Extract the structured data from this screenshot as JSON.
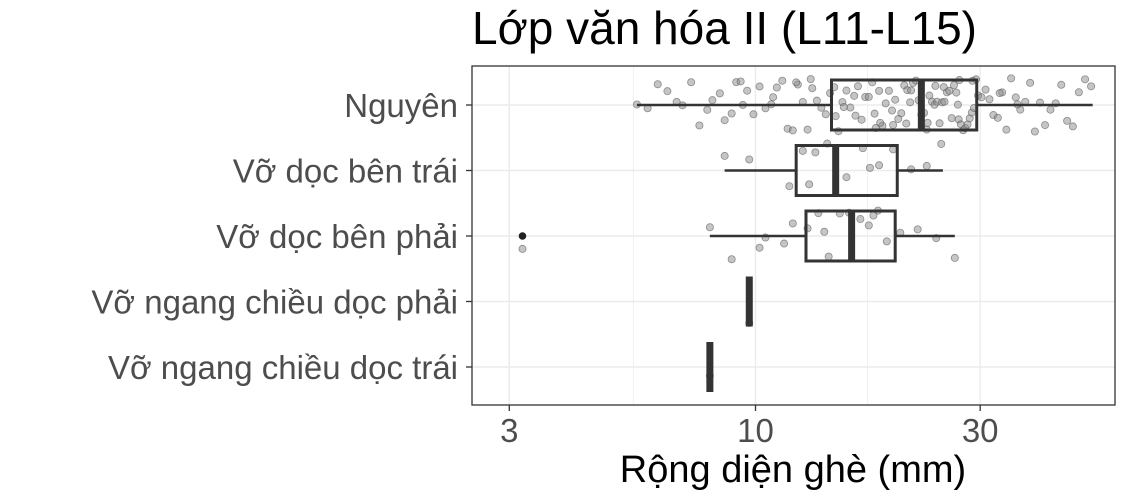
{
  "chart_data": {
    "type": "boxplot",
    "title": "Lớp văn hóa II (L11-L15)",
    "xlabel": "Rộng diện ghè (mm)",
    "ylabel": "",
    "x_scale": "log10",
    "xlim": [
      2.5,
      58
    ],
    "x_ticks": [
      3,
      10,
      30
    ],
    "x_tick_labels": [
      "3",
      "10",
      "30"
    ],
    "grid": true,
    "categories": [
      "Nguyên",
      "Vỡ dọc bên trái",
      "Vỡ dọc bên phải",
      "Vỡ ngang chiều dọc phải",
      "Vỡ ngang chiều dọc trái"
    ],
    "boxes": [
      {
        "category": "Nguyên",
        "whisker_low": 5.6,
        "q1": 14.5,
        "median": 22.5,
        "q3": 29.5,
        "whisker_high": 52,
        "outliers": [],
        "points": [
          5.6,
          5.9,
          6.2,
          6.5,
          6.8,
          7.0,
          7.3,
          7.6,
          7.9,
          8.1,
          8.4,
          8.6,
          8.9,
          9.1,
          9.4,
          9.6,
          9.9,
          10.2,
          10.5,
          10.8,
          11.1,
          11.4,
          11.7,
          12.0,
          12.3,
          12.6,
          12.9,
          13.2,
          13.5,
          13.8,
          14.1,
          14.4,
          14.7,
          15.0,
          15.3,
          15.6,
          15.9,
          16.2,
          16.5,
          16.8,
          17.1,
          17.4,
          17.7,
          18.0,
          18.3,
          18.6,
          18.9,
          19.2,
          19.5,
          19.8,
          20.1,
          20.4,
          20.7,
          21.0,
          21.3,
          21.6,
          21.9,
          22.2,
          22.5,
          22.8,
          23.1,
          23.4,
          23.7,
          24.0,
          24.3,
          24.6,
          24.9,
          25.2,
          25.5,
          25.8,
          26.1,
          26.4,
          26.7,
          27.0,
          27.3,
          27.6,
          27.9,
          28.2,
          28.5,
          28.8,
          29.1,
          29.4,
          29.7,
          30.2,
          30.8,
          31.4,
          32.0,
          32.7,
          33.4,
          34.1,
          34.9,
          35.7,
          36.5,
          37.4,
          38.3,
          39.2,
          40.2,
          41.2,
          42.3,
          43.4,
          44.6,
          45.9,
          47.2,
          48.6,
          50.1,
          51.6,
          14.8,
          16.3,
          17.9,
          19.6,
          21.4,
          23.2,
          25.1,
          27.1,
          12.2,
          13.1,
          15.4,
          18.4,
          20.9,
          24.1,
          26.9,
          28.9,
          33.0,
          36.0,
          9.3,
          10.9
        ]
      },
      {
        "category": "Vỡ dọc bên trái",
        "whisker_low": 8.6,
        "q1": 12.2,
        "median": 14.8,
        "q3": 20.0,
        "whisker_high": 25.0,
        "outliers": [],
        "points": [
          8.6,
          9.7,
          11.8,
          12.6,
          13.4,
          14.2,
          15.6,
          16.9,
          18.3,
          19.6,
          21.4,
          23.1,
          24.8,
          13.0,
          17.5
        ]
      },
      {
        "category": "Vỡ dọc bên phải",
        "whisker_low": 8.0,
        "q1": 12.8,
        "median": 16.0,
        "q3": 19.8,
        "whisker_high": 26.5,
        "outliers": [
          3.2
        ],
        "points": [
          3.2,
          8.0,
          8.9,
          10.2,
          11.5,
          12.0,
          12.9,
          13.6,
          14.3,
          15.1,
          15.8,
          16.7,
          17.4,
          18.2,
          19.0,
          20.3,
          22.1,
          24.2,
          26.5,
          10.5,
          14.0,
          17.8
        ]
      },
      {
        "category": "Vỡ ngang chiều dọc phải",
        "whisker_low": 9.7,
        "q1": 9.7,
        "median": 9.7,
        "q3": 9.7,
        "whisker_high": 9.7,
        "outliers": [],
        "points": [
          9.7
        ]
      },
      {
        "category": "Vỡ ngang chiều dọc trái",
        "whisker_low": 8.0,
        "q1": 8.0,
        "median": 8.0,
        "q3": 8.0,
        "whisker_high": 8.0,
        "outliers": [],
        "points": [
          8.0
        ]
      }
    ],
    "colors": {
      "box_stroke": "#333333",
      "point_fill": "#8c8c8c",
      "grid": "#ebebeb",
      "panel_border": "#333333"
    }
  }
}
